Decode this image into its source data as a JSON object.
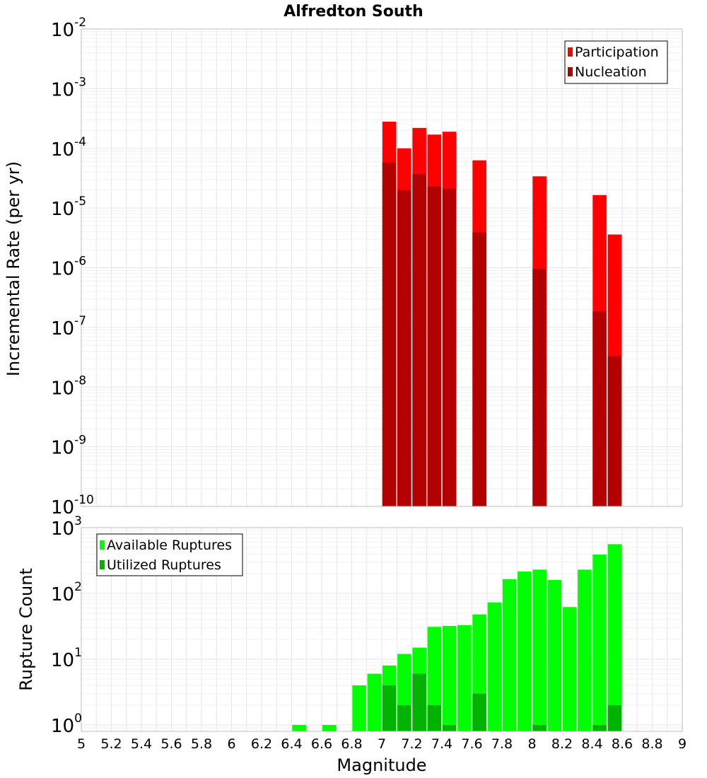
{
  "chart_data": [
    {
      "type": "bar",
      "title": "Alfredton South",
      "xlabel": "",
      "ylabel": "Incremental Rate (per yr)",
      "yscale": "log",
      "ylim": [
        1e-10,
        0.01
      ],
      "xlim": [
        5,
        9
      ],
      "grid": true,
      "legend_position": "top-right",
      "y_tick_labels": [
        {
          "base": "10",
          "exp": "-10"
        },
        {
          "base": "10",
          "exp": "-9"
        },
        {
          "base": "10",
          "exp": "-8"
        },
        {
          "base": "10",
          "exp": "-7"
        },
        {
          "base": "10",
          "exp": "-6"
        },
        {
          "base": "10",
          "exp": "-5"
        },
        {
          "base": "10",
          "exp": "-4"
        },
        {
          "base": "10",
          "exp": "-3"
        },
        {
          "base": "10",
          "exp": "-2"
        }
      ],
      "legend": [
        "Participation",
        "Nucleation"
      ],
      "x": [
        7.05,
        7.15,
        7.25,
        7.35,
        7.45,
        7.65,
        8.05,
        8.45,
        8.55
      ],
      "series": [
        {
          "name": "Participation",
          "color": "#ff0000",
          "values": [
            0.00028,
            0.0001,
            0.00022,
            0.00017,
            0.00019,
            6.3e-05,
            3.4e-05,
            1.65e-05,
            3.6e-06
          ]
        },
        {
          "name": "Nucleation",
          "color": "#b30000",
          "values": [
            5.8e-05,
            2e-05,
            3.7e-05,
            2.3e-05,
            2.1e-05,
            3.9e-06,
            9.5e-07,
            1.85e-07,
            3.3e-08
          ]
        }
      ]
    },
    {
      "type": "bar",
      "title": "",
      "xlabel": "Magnitude",
      "ylabel": "Rupture Count",
      "yscale": "log",
      "ylim": [
        0.8,
        1000
      ],
      "xlim": [
        5,
        9
      ],
      "grid": true,
      "legend_position": "top-left",
      "y_tick_labels": [
        {
          "base": "10",
          "exp": "0"
        },
        {
          "base": "10",
          "exp": "1"
        },
        {
          "base": "10",
          "exp": "2"
        },
        {
          "base": "10",
          "exp": "3"
        }
      ],
      "x_tick_labels": [
        "5",
        "5.2",
        "5.4",
        "5.6",
        "5.8",
        "6",
        "6.2",
        "6.4",
        "6.6",
        "6.8",
        "7",
        "7.2",
        "7.4",
        "7.6",
        "7.8",
        "8",
        "8.2",
        "8.4",
        "8.6",
        "8.8",
        "9"
      ],
      "legend": [
        "Available Ruptures",
        "Utilized Ruptures"
      ],
      "x": [
        6.45,
        6.65,
        6.85,
        6.95,
        7.05,
        7.15,
        7.25,
        7.35,
        7.45,
        7.55,
        7.65,
        7.75,
        7.85,
        7.95,
        8.05,
        8.15,
        8.25,
        8.35,
        8.45,
        8.55
      ],
      "series": [
        {
          "name": "Available Ruptures",
          "color": "#00ff00",
          "values": [
            1,
            1,
            4,
            6,
            8,
            12,
            15,
            31,
            32,
            33,
            48,
            73,
            165,
            215,
            230,
            160,
            62,
            230,
            390,
            560
          ]
        },
        {
          "name": "Utilized Ruptures",
          "color": "#00b300",
          "values": [
            null,
            null,
            null,
            null,
            4,
            2,
            6,
            2,
            1,
            null,
            3,
            null,
            null,
            null,
            1,
            null,
            null,
            null,
            1,
            2
          ]
        }
      ]
    }
  ]
}
